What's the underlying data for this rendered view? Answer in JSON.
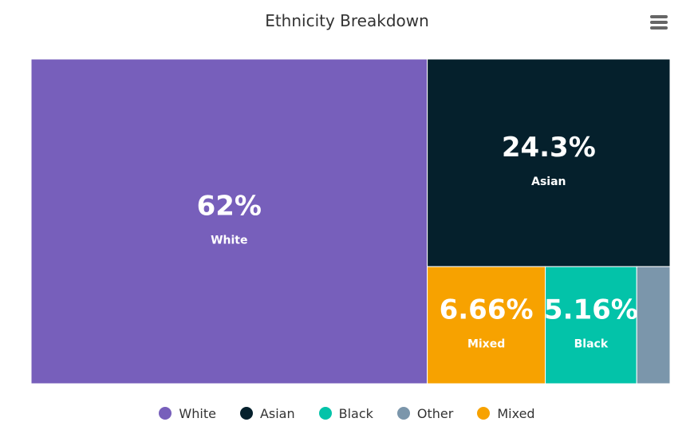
{
  "chart_data": {
    "type": "treemap",
    "title": "Ethnicity Breakdown",
    "items": [
      {
        "name": "White",
        "value": 62,
        "label": "62%",
        "color": "#775fbb"
      },
      {
        "name": "Asian",
        "value": 24.3,
        "label": "24.3%",
        "color": "#05202c"
      },
      {
        "name": "Mixed",
        "value": 6.66,
        "label": "6.66%",
        "color": "#f7a200"
      },
      {
        "name": "Black",
        "value": 5.16,
        "label": "5.16%",
        "color": "#03c3a9"
      },
      {
        "name": "Other",
        "value": 1.88,
        "label": "",
        "color": "#7b96ab"
      }
    ],
    "legend": {
      "placement": "bottom-center",
      "entries": [
        {
          "name": "White",
          "color": "#775fbb"
        },
        {
          "name": "Asian",
          "color": "#05202c"
        },
        {
          "name": "Black",
          "color": "#03c3a9"
        },
        {
          "name": "Other",
          "color": "#7b96ab"
        },
        {
          "name": "Mixed",
          "color": "#f7a200"
        }
      ]
    }
  },
  "menu_icon": "hamburger-menu-icon"
}
